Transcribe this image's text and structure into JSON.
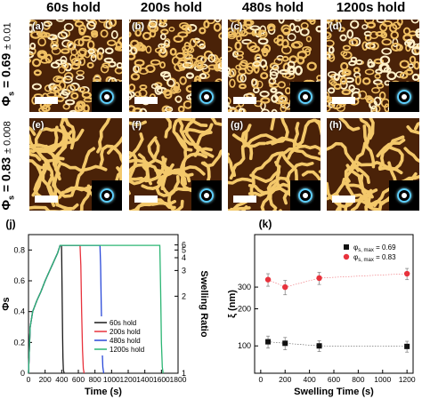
{
  "column_titles": [
    "60s hold",
    "200s hold",
    "480s hold",
    "1200s hold"
  ],
  "row_labels": [
    {
      "symbol": "Φ",
      "sub": "s",
      "value": " = 0.69 ",
      "pm": "± 0.01"
    },
    {
      "symbol": "Φ",
      "sub": "s",
      "value": " = 0.83 ",
      "pm": "± 0.008"
    }
  ],
  "panel_labels": [
    "(a)",
    "(b)",
    "(c)",
    "(d)",
    "(e)",
    "(f)",
    "(g)",
    "(h)"
  ],
  "chart_data": [
    {
      "type": "line",
      "panel_label": "(j)",
      "xlabel": "Time (s)",
      "ylabel": "Φs",
      "y2label": "Swelling Ratio",
      "xlim": [
        0,
        1800
      ],
      "ylim": [
        0,
        0.9
      ],
      "xticks": [
        0,
        200,
        400,
        600,
        800,
        1000,
        1200,
        1400,
        1600,
        1800
      ],
      "yticks": [
        0.0,
        0.2,
        0.4,
        0.6,
        0.8
      ],
      "ytick_labels": [
        "0",
        "0.2",
        "0.4",
        "0.6",
        "0.8"
      ],
      "y2ticks": [
        {
          "label": "1",
          "phi": 0.0
        },
        {
          "label": "2",
          "phi": 0.5
        },
        {
          "label": "3",
          "phi": 0.667
        },
        {
          "label": "4",
          "phi": 0.75
        },
        {
          "label": "5",
          "phi": 0.8
        },
        {
          "label": "6",
          "phi": 0.833
        }
      ],
      "legend_position": "bottom-right",
      "series": [
        {
          "name": "60s hold",
          "color": "#1a1a1a",
          "x": [
            0,
            20,
            50,
            100,
            150,
            200,
            250,
            300,
            350,
            380,
            395,
            398,
            400,
            405,
            410,
            415,
            420,
            430
          ],
          "y": [
            0,
            0.3,
            0.4,
            0.47,
            0.53,
            0.6,
            0.66,
            0.72,
            0.78,
            0.83,
            0.83,
            0.83,
            0.76,
            0.5,
            0.25,
            0.1,
            0.02,
            0
          ]
        },
        {
          "name": "200s hold",
          "color": "#e8323c",
          "x": [
            0,
            20,
            50,
            100,
            150,
            200,
            250,
            300,
            350,
            380,
            400,
            500,
            600,
            620,
            630,
            640,
            650,
            660,
            670
          ],
          "y": [
            0,
            0.3,
            0.4,
            0.47,
            0.53,
            0.6,
            0.66,
            0.72,
            0.78,
            0.83,
            0.83,
            0.83,
            0.83,
            0.83,
            0.7,
            0.4,
            0.15,
            0.03,
            0
          ]
        },
        {
          "name": "480s hold",
          "color": "#2a49d9",
          "x": [
            0,
            20,
            50,
            100,
            150,
            200,
            250,
            300,
            350,
            380,
            400,
            600,
            860,
            868,
            875,
            885,
            895,
            905
          ],
          "y": [
            0,
            0.3,
            0.4,
            0.47,
            0.53,
            0.6,
            0.66,
            0.72,
            0.78,
            0.83,
            0.83,
            0.83,
            0.83,
            0.7,
            0.45,
            0.18,
            0.04,
            0
          ]
        },
        {
          "name": "1200s hold",
          "color": "#2bb573",
          "x": [
            0,
            20,
            50,
            100,
            150,
            200,
            250,
            300,
            350,
            380,
            400,
            800,
            1200,
            1580,
            1590,
            1600,
            1610,
            1620
          ],
          "y": [
            0,
            0.3,
            0.4,
            0.47,
            0.53,
            0.6,
            0.66,
            0.72,
            0.78,
            0.83,
            0.83,
            0.83,
            0.83,
            0.83,
            0.55,
            0.2,
            0.04,
            0
          ]
        }
      ]
    },
    {
      "type": "scatter",
      "panel_label": "(k)",
      "xlabel": "Swelling Time (s)",
      "ylabel": "ξ (nm)",
      "xlim": [
        -50,
        1250
      ],
      "ylim": [
        60,
        800
      ],
      "log_y": true,
      "xticks": [
        0,
        200,
        400,
        600,
        800,
        1000,
        1200
      ],
      "yticks": [
        100,
        200,
        300
      ],
      "legend_position": "top-right",
      "series": [
        {
          "name": "φs, max = 0.69",
          "legend_prefix": "φ",
          "legend_sub": "s, max",
          "legend_value": " = 0.69",
          "color": "#111111",
          "marker": "square",
          "x": [
            60,
            200,
            480,
            1200
          ],
          "y": [
            108,
            105,
            100,
            99
          ],
          "err": [
            12,
            12,
            10,
            10
          ]
        },
        {
          "name": "φs, max = 0.83",
          "legend_prefix": "φ",
          "legend_sub": "s, max",
          "legend_value": " = 0.83",
          "color": "#e8323c",
          "marker": "circle",
          "x": [
            60,
            200,
            480,
            1200
          ],
          "y": [
            345,
            300,
            355,
            385
          ],
          "err": [
            40,
            40,
            40,
            40
          ]
        }
      ]
    }
  ]
}
